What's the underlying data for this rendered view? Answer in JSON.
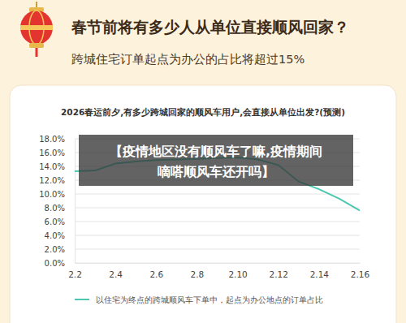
{
  "header": {
    "title": "春节前将有多少人从单位直接顺风回家？",
    "subtitle": "跨城住宅订单起点为办公的占比将超过15%"
  },
  "chart_data": {
    "type": "line",
    "title": "2026春运前夕,有多少跨城回家的顺风车用户,会直接从单位出发?(预测)",
    "categories": [
      "2.2",
      null,
      "2.4",
      null,
      "2.6",
      null,
      "2.8",
      null,
      "2.10",
      null,
      "2.12",
      null,
      "2.14",
      null,
      "2.16"
    ],
    "series": [
      {
        "name": "以住宅为终点的跨城顺风车下单中，起点为办公地点的订单占比",
        "color": "#4cc7b0",
        "values": [
          13.3,
          13.4,
          14.4,
          14.7,
          14.9,
          15.0,
          15.1,
          15.2,
          15.3,
          15.0,
          14.2,
          11.8,
          10.7,
          9.3,
          7.6
        ]
      }
    ],
    "ylim": [
      0,
      18
    ],
    "yticks": [
      {
        "value": 0,
        "label": "0.0%"
      },
      {
        "value": 2,
        "label": "2.0%"
      },
      {
        "value": 4,
        "label": "4.0%"
      },
      {
        "value": 6,
        "label": "6.0%"
      },
      {
        "value": 8,
        "label": "8.0%"
      },
      {
        "value": 10,
        "label": "10.0%"
      },
      {
        "value": 12,
        "label": "12.0%"
      },
      {
        "value": 14,
        "label": "14.0%"
      },
      {
        "value": 16,
        "label": "16.0%"
      },
      {
        "value": 18,
        "label": "18.0%"
      }
    ],
    "grid": true,
    "annotations": [
      "【疫情地区没有顺风车了嘛,疫情期间",
      "嘀嗒顺风车还开吗】"
    ]
  }
}
